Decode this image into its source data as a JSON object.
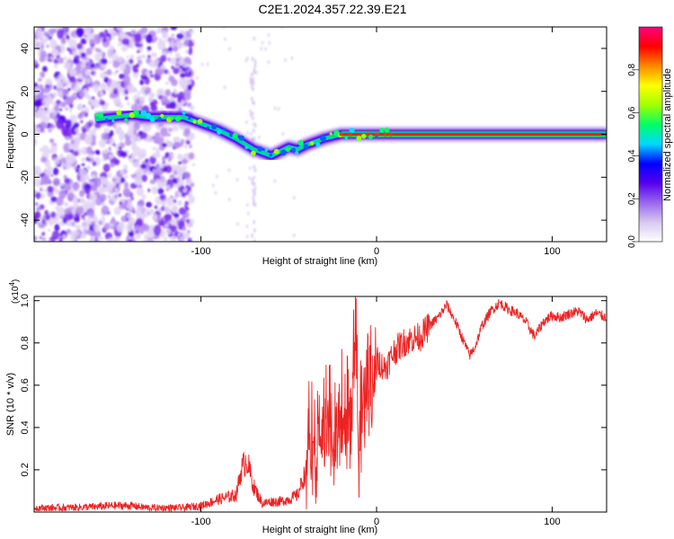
{
  "title": "C2E1.2024.357.22.39.E21",
  "chart_data": [
    {
      "type": "heatmap",
      "xlabel": "Height of straight line (km)",
      "ylabel": "Frequency (Hz)",
      "xlim": [
        -195,
        131
      ],
      "ylim": [
        -50,
        50
      ],
      "xticks": [
        -100,
        0,
        100
      ],
      "xtick_labels": [
        "-100",
        "0",
        "100"
      ],
      "yticks": [
        -40,
        -20,
        0,
        20,
        40
      ],
      "ytick_labels": [
        "-40",
        "-20",
        "0",
        "20",
        "40"
      ],
      "colorbar": {
        "label": "Normalized spectral amplitude",
        "range": [
          0,
          1
        ],
        "ticks": [
          0.0,
          0.2,
          0.4,
          0.6,
          0.8
        ],
        "tick_labels": [
          "0.0",
          "0.2",
          "0.4",
          "0.6",
          "0.8"
        ],
        "colormap": [
          "#ffffff",
          "#d8c8f0",
          "#9966ee",
          "#5500ee",
          "#0000ff",
          "#00d8ff",
          "#00ff66",
          "#a0ff00",
          "#ffff00",
          "#ff8800",
          "#ff0000",
          "#ff0080"
        ]
      },
      "trace": {
        "x": [
          -160,
          -150,
          -140,
          -130,
          -110,
          -100,
          -90,
          -80,
          -70,
          -60,
          -50,
          -45,
          -40,
          -30,
          -20,
          -10,
          0,
          10,
          131
        ],
        "y": [
          7,
          8,
          9,
          8,
          8,
          5,
          2,
          -2,
          -7,
          -10,
          -6,
          -7,
          -5,
          -2,
          0,
          0,
          0,
          0,
          0
        ]
      },
      "grid": false
    },
    {
      "type": "line",
      "xlabel": "Height of straight line (km)",
      "ylabel": "SNR (10 * v/v)",
      "y_multiplier": "(x10",
      "y_multiplier_exp": "4",
      "y_multiplier_close": ")",
      "xlim": [
        -195,
        131
      ],
      "ylim": [
        0,
        1.02
      ],
      "xticks": [
        -100,
        0,
        100
      ],
      "xtick_labels": [
        "-100",
        "0",
        "100"
      ],
      "yticks": [
        0.2,
        0.4,
        0.6,
        0.8,
        1.0
      ],
      "ytick_labels": [
        "0.2",
        "0.4",
        "0.6",
        "0.8",
        "1.0"
      ],
      "series": [
        {
          "color": "#ee2222",
          "x": [
            -195,
            -180,
            -160,
            -150,
            -140,
            -130,
            -110,
            -100,
            -90,
            -80,
            -77,
            -74,
            -70,
            -65,
            -60,
            -55,
            -50,
            -45,
            -40,
            -38,
            -35,
            -30,
            -25,
            -20,
            -15,
            -12,
            -10,
            -8,
            -5,
            0,
            5,
            10,
            15,
            20,
            25,
            30,
            35,
            40,
            45,
            50,
            53,
            56,
            60,
            65,
            70,
            75,
            80,
            85,
            90,
            95,
            100,
            105,
            110,
            115,
            120,
            125,
            131
          ],
          "y": [
            0.02,
            0.02,
            0.025,
            0.03,
            0.03,
            0.02,
            0.02,
            0.03,
            0.06,
            0.08,
            0.2,
            0.25,
            0.12,
            0.04,
            0.05,
            0.05,
            0.06,
            0.08,
            0.2,
            0.5,
            0.35,
            0.55,
            0.45,
            0.6,
            0.5,
            1.0,
            0.4,
            0.6,
            0.65,
            0.72,
            0.68,
            0.76,
            0.8,
            0.82,
            0.83,
            0.88,
            0.92,
            0.98,
            0.9,
            0.8,
            0.74,
            0.78,
            0.88,
            0.95,
            0.99,
            0.96,
            0.94,
            0.9,
            0.83,
            0.9,
            0.93,
            0.92,
            0.94,
            0.95,
            0.91,
            0.94,
            0.92
          ]
        }
      ],
      "grid": false
    }
  ]
}
